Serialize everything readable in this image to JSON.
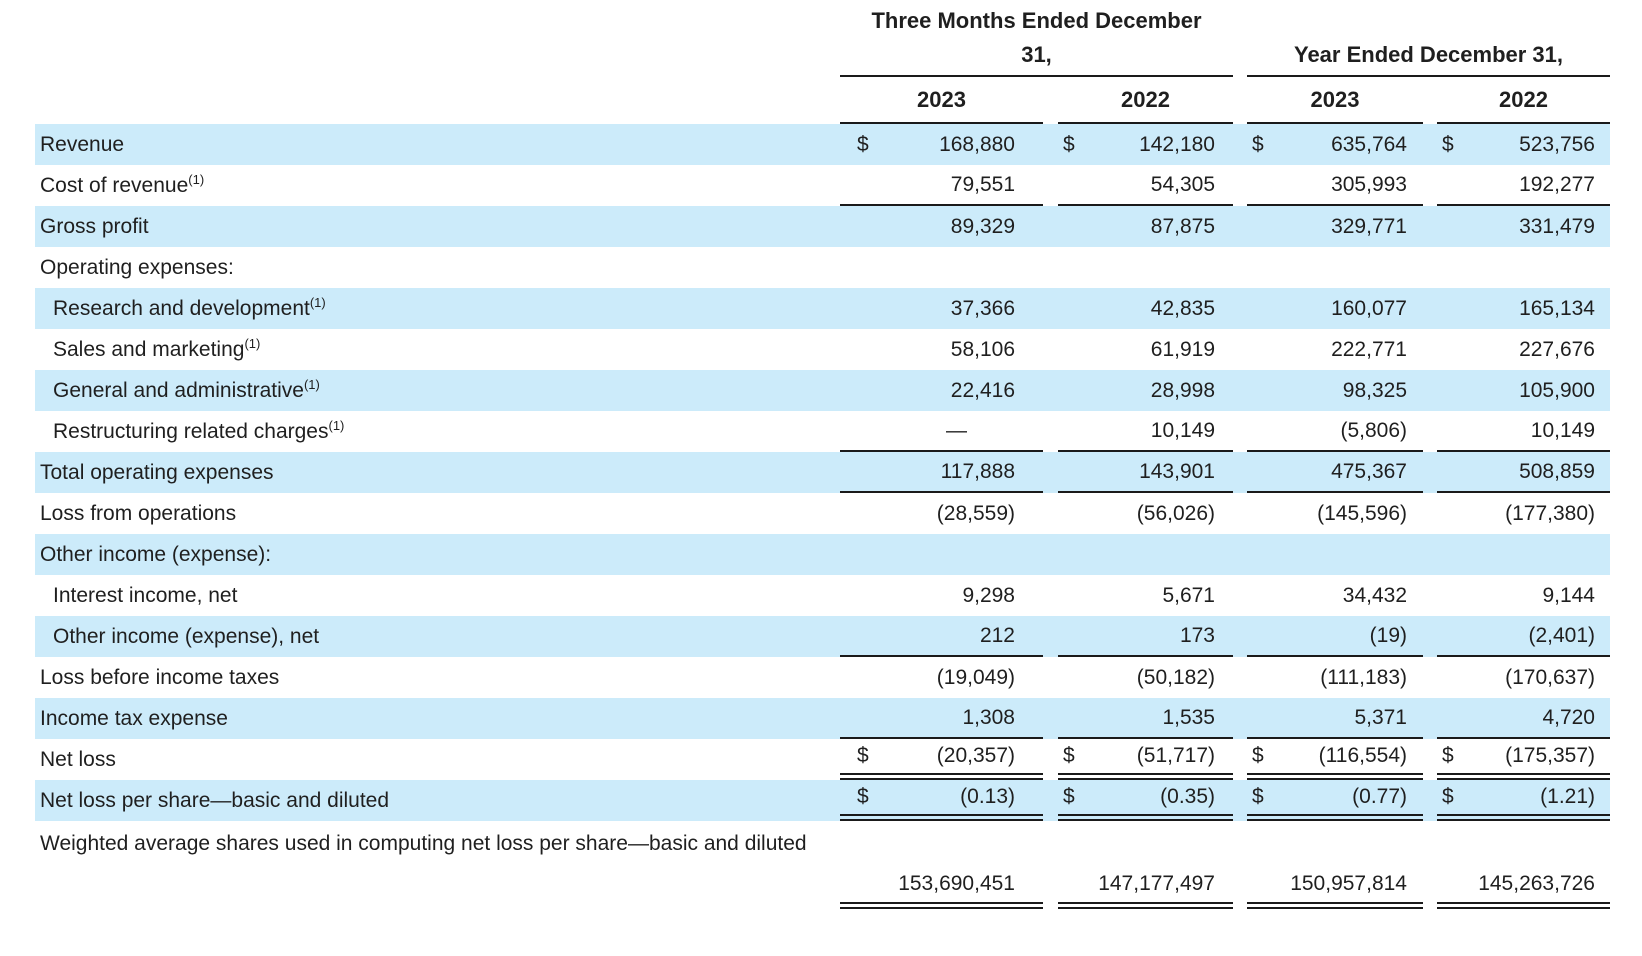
{
  "colors": {
    "row_highlight": "#ccebfa",
    "text": "#1f1f1f",
    "rule": "#1a1a1a"
  },
  "table": {
    "currency_symbol": "$",
    "header": {
      "group1_line1": "Three Months Ended December",
      "group1_line2": "31,",
      "group2": "Year Ended December 31,",
      "years": [
        "2023",
        "2022",
        "2023",
        "2022"
      ]
    },
    "rows": [
      {
        "label": "Revenue",
        "sup": "",
        "indent": 0,
        "dollar": true,
        "bg": "blue",
        "rule": "none",
        "values": [
          "168,880",
          "142,180",
          "635,764",
          "523,756"
        ]
      },
      {
        "label": "Cost of revenue",
        "sup": "(1)",
        "indent": 0,
        "dollar": false,
        "bg": "white",
        "rule": "single",
        "values": [
          "79,551",
          "54,305",
          "305,993",
          "192,277"
        ]
      },
      {
        "label": "Gross profit",
        "sup": "",
        "indent": 0,
        "dollar": false,
        "bg": "blue",
        "rule": "none",
        "values": [
          "89,329",
          "87,875",
          "329,771",
          "331,479"
        ]
      },
      {
        "label": "Operating expenses:",
        "sup": "",
        "indent": 0,
        "dollar": false,
        "bg": "white",
        "rule": "none",
        "values": [
          "",
          "",
          "",
          ""
        ]
      },
      {
        "label": "Research and development",
        "sup": "(1)",
        "indent": 1,
        "dollar": false,
        "bg": "blue",
        "rule": "none",
        "values": [
          "37,366",
          "42,835",
          "160,077",
          "165,134"
        ]
      },
      {
        "label": "Sales and marketing",
        "sup": "(1)",
        "indent": 1,
        "dollar": false,
        "bg": "white",
        "rule": "none",
        "values": [
          "58,106",
          "61,919",
          "222,771",
          "227,676"
        ]
      },
      {
        "label": "General and administrative",
        "sup": "(1)",
        "indent": 1,
        "dollar": false,
        "bg": "blue",
        "rule": "none",
        "values": [
          "22,416",
          "28,998",
          "98,325",
          "105,900"
        ]
      },
      {
        "label": "Restructuring related charges",
        "sup": "(1)",
        "indent": 1,
        "dollar": false,
        "bg": "white",
        "rule": "single",
        "values": [
          "—",
          "10,149",
          "(5,806)",
          "10,149"
        ]
      },
      {
        "label": "Total operating expenses",
        "sup": "",
        "indent": 0,
        "dollar": false,
        "bg": "blue",
        "rule": "single",
        "values": [
          "117,888",
          "143,901",
          "475,367",
          "508,859"
        ]
      },
      {
        "label": "Loss from operations",
        "sup": "",
        "indent": 0,
        "dollar": false,
        "bg": "white",
        "rule": "none",
        "values": [
          "(28,559)",
          "(56,026)",
          "(145,596)",
          "(177,380)"
        ]
      },
      {
        "label": "Other income (expense):",
        "sup": "",
        "indent": 0,
        "dollar": false,
        "bg": "blue",
        "rule": "none",
        "values": [
          "",
          "",
          "",
          ""
        ]
      },
      {
        "label": "Interest income, net",
        "sup": "",
        "indent": 1,
        "dollar": false,
        "bg": "white",
        "rule": "none",
        "values": [
          "9,298",
          "5,671",
          "34,432",
          "9,144"
        ]
      },
      {
        "label": "Other income (expense), net",
        "sup": "",
        "indent": 1,
        "dollar": false,
        "bg": "blue",
        "rule": "single",
        "values": [
          "212",
          "173",
          "(19)",
          "(2,401)"
        ]
      },
      {
        "label": "Loss before income taxes",
        "sup": "",
        "indent": 0,
        "dollar": false,
        "bg": "white",
        "rule": "none",
        "values": [
          "(19,049)",
          "(50,182)",
          "(111,183)",
          "(170,637)"
        ]
      },
      {
        "label": "Income tax expense",
        "sup": "",
        "indent": 0,
        "dollar": false,
        "bg": "blue",
        "rule": "single",
        "values": [
          "1,308",
          "1,535",
          "5,371",
          "4,720"
        ]
      },
      {
        "label": "Net loss",
        "sup": "",
        "indent": 0,
        "dollar": true,
        "bg": "white",
        "rule": "double",
        "values": [
          "(20,357)",
          "(51,717)",
          "(116,554)",
          "(175,357)"
        ]
      },
      {
        "label": "Net loss per share—basic and diluted",
        "sup": "",
        "indent": 0,
        "dollar": true,
        "bg": "blue",
        "rule": "double",
        "values": [
          "(0.13)",
          "(0.35)",
          "(0.77)",
          "(1.21)"
        ]
      },
      {
        "label": "Weighted average shares used in computing net loss per share—basic and diluted",
        "sup": "",
        "indent": 0,
        "dollar": false,
        "bg": "white",
        "rule": "double",
        "tall": true,
        "values": [
          "153,690,451",
          "147,177,497",
          "150,957,814",
          "145,263,726"
        ]
      }
    ]
  }
}
